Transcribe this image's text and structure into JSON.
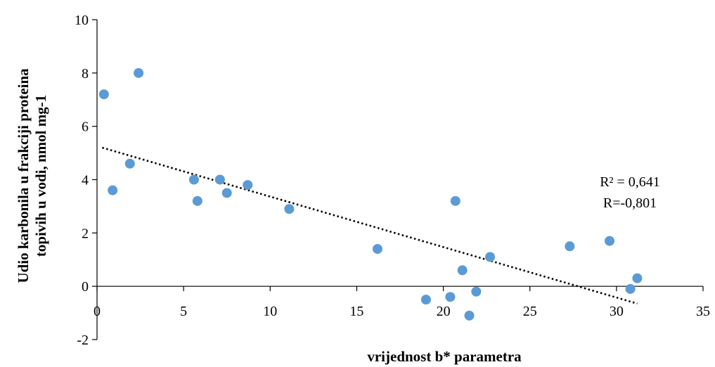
{
  "chart_data": {
    "type": "scatter",
    "title": "",
    "xlabel": "vrijednost b* parametra",
    "ylabel_line1": "Udio karbonila u frakciji proteina",
    "ylabel_line2": "topivih u vodi, nmol mg-1",
    "xlim": [
      0,
      35
    ],
    "ylim": [
      -2,
      10
    ],
    "xticks": [
      0,
      5,
      10,
      15,
      20,
      25,
      30,
      35
    ],
    "yticks": [
      -2,
      0,
      2,
      4,
      6,
      8,
      10
    ],
    "grid": false,
    "marker_color": "#5b9bd5",
    "points": [
      {
        "x": 0.4,
        "y": 7.2
      },
      {
        "x": 0.9,
        "y": 3.6
      },
      {
        "x": 1.9,
        "y": 4.6
      },
      {
        "x": 2.4,
        "y": 8.0
      },
      {
        "x": 5.6,
        "y": 4.0
      },
      {
        "x": 5.8,
        "y": 3.2
      },
      {
        "x": 7.1,
        "y": 4.0
      },
      {
        "x": 7.5,
        "y": 3.5
      },
      {
        "x": 8.7,
        "y": 3.8
      },
      {
        "x": 11.1,
        "y": 2.9
      },
      {
        "x": 16.2,
        "y": 1.4
      },
      {
        "x": 19.0,
        "y": -0.5
      },
      {
        "x": 20.4,
        "y": -0.4
      },
      {
        "x": 20.7,
        "y": 3.2
      },
      {
        "x": 21.1,
        "y": 0.6
      },
      {
        "x": 21.5,
        "y": -1.1
      },
      {
        "x": 21.9,
        "y": -0.2
      },
      {
        "x": 22.7,
        "y": 1.1
      },
      {
        "x": 27.3,
        "y": 1.5
      },
      {
        "x": 29.6,
        "y": 1.7
      },
      {
        "x": 30.8,
        "y": -0.1
      },
      {
        "x": 31.2,
        "y": 0.3
      }
    ],
    "trendline": {
      "style": "dotted",
      "x": [
        0.3,
        31.2
      ],
      "y": [
        5.2,
        -0.65
      ]
    },
    "annotations": [
      "R² = 0,641",
      "R=-0,801"
    ]
  }
}
